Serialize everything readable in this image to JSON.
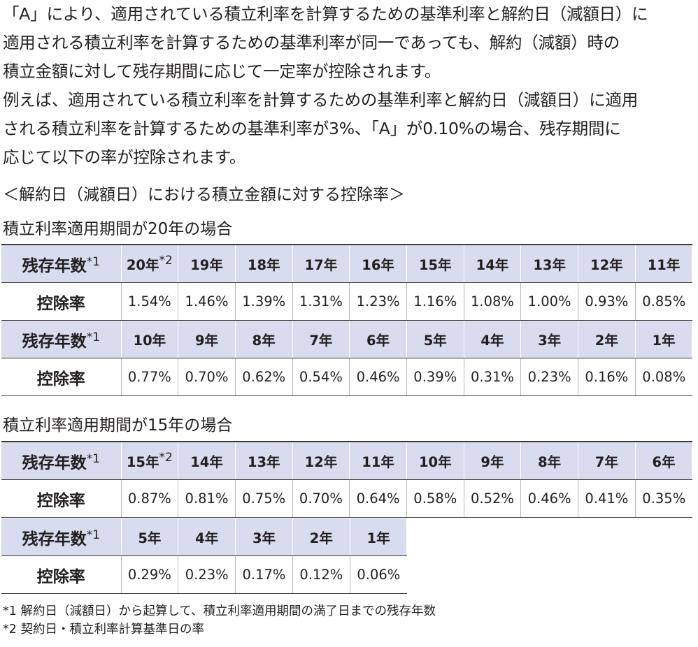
{
  "intro": {
    "lines": [
      "「A」により、適用されている積立利率を計算するための基準利率と解約日（減額日）に",
      "適用される積立利率を計算するための基準利率が同一であっても、解約（減額）時の",
      "積立金額に対して残存期間に応じて一定率が控除されます。",
      "例えば、適用されている積立利率を計算するための基準利率と解約日（減額日）に適用",
      "される積立利率を計算するための基準利率が3%、「A」が0.10%の場合、残存期間に",
      "応じて以下の率が控除されます。"
    ]
  },
  "subtitle": "＜解約日（減額日）における積立金額に対する控除率＞",
  "tables": [
    {
      "heading": "積立利率適用期間が20年の場合",
      "header_label": "残存年数",
      "rate_label": "控除率",
      "blocks": [
        {
          "years": [
            "20年",
            "19年",
            "18年",
            "17年",
            "16年",
            "15年",
            "14年",
            "13年",
            "12年",
            "11年"
          ],
          "rates": [
            "1.54%",
            "1.46%",
            "1.39%",
            "1.31%",
            "1.23%",
            "1.16%",
            "1.08%",
            "1.00%",
            "0.93%",
            "0.85%"
          ]
        },
        {
          "years": [
            "10年",
            "9年",
            "8年",
            "7年",
            "6年",
            "5年",
            "4年",
            "3年",
            "2年",
            "1年"
          ],
          "rates": [
            "0.77%",
            "0.70%",
            "0.62%",
            "0.54%",
            "0.46%",
            "0.39%",
            "0.31%",
            "0.23%",
            "0.16%",
            "0.08%"
          ]
        }
      ]
    },
    {
      "heading": "積立利率適用期間が15年の場合",
      "header_label": "残存年数",
      "rate_label": "控除率",
      "blocks": [
        {
          "years": [
            "15年",
            "14年",
            "13年",
            "12年",
            "11年",
            "10年",
            "9年",
            "8年",
            "7年",
            "6年"
          ],
          "rates": [
            "0.87%",
            "0.81%",
            "0.75%",
            "0.70%",
            "0.64%",
            "0.58%",
            "0.52%",
            "0.46%",
            "0.41%",
            "0.35%"
          ]
        },
        {
          "years": [
            "5年",
            "4年",
            "3年",
            "2年",
            "1年"
          ],
          "rates": [
            "0.29%",
            "0.23%",
            "0.17%",
            "0.12%",
            "0.06%"
          ]
        }
      ]
    }
  ],
  "marks": {
    "m1": "*1",
    "m2": "*2"
  },
  "notes": [
    "*1 解約日（減額日）から起算して、積立利率適用期間の満了日までの残存年数",
    "*2 契約日・積立利率計算基準日の率"
  ]
}
